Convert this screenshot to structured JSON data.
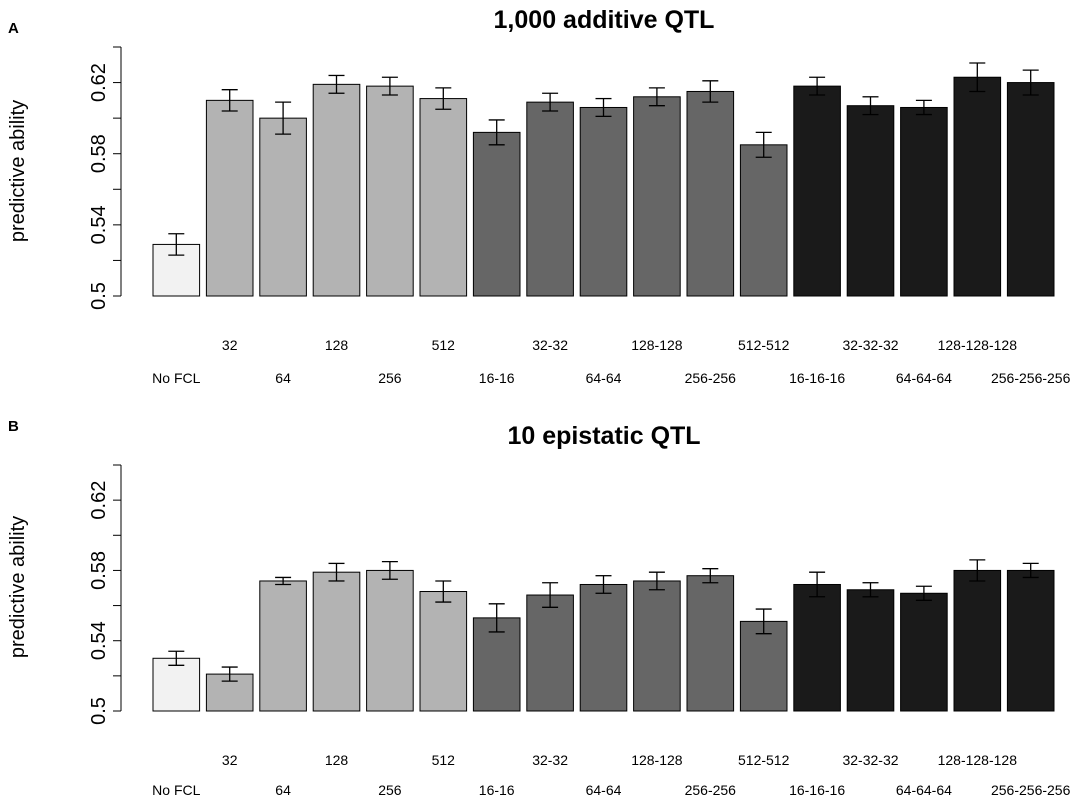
{
  "chart_data": [
    {
      "type": "bar",
      "panel": "A",
      "title": "1,000 additive QTL",
      "xlabel": "",
      "ylabel": "predictive ability",
      "ylim": [
        0.5,
        0.64
      ],
      "yticks": [
        0.5,
        0.54,
        0.58,
        0.62
      ],
      "ytick_labels": [
        "0.5",
        "0.54",
        "0.58",
        "0.62"
      ],
      "categories": [
        "No FCL",
        "32",
        "64",
        "128",
        "256",
        "512",
        "16-16",
        "32-32",
        "64-64",
        "128-128",
        "256-256",
        "512-512",
        "16-16-16",
        "32-32-32",
        "64-64-64",
        "128-128-128",
        "256-256-256"
      ],
      "values": [
        0.529,
        0.61,
        0.6,
        0.619,
        0.618,
        0.611,
        0.592,
        0.609,
        0.606,
        0.612,
        0.615,
        0.585,
        0.618,
        0.607,
        0.606,
        0.623,
        0.62
      ],
      "errors": [
        0.006,
        0.006,
        0.009,
        0.005,
        0.005,
        0.006,
        0.007,
        0.005,
        0.005,
        0.005,
        0.006,
        0.007,
        0.005,
        0.005,
        0.004,
        0.008,
        0.007
      ],
      "colors": [
        "#f2f2f2",
        "#b3b3b3",
        "#b3b3b3",
        "#b3b3b3",
        "#b3b3b3",
        "#b3b3b3",
        "#666666",
        "#666666",
        "#666666",
        "#666666",
        "#666666",
        "#666666",
        "#1a1a1a",
        "#1a1a1a",
        "#1a1a1a",
        "#1a1a1a",
        "#1a1a1a"
      ]
    },
    {
      "type": "bar",
      "panel": "B",
      "title": "10 epistatic QTL",
      "xlabel": "",
      "ylabel": "predictive ability",
      "ylim": [
        0.5,
        0.64
      ],
      "yticks": [
        0.5,
        0.54,
        0.58,
        0.62
      ],
      "ytick_labels": [
        "0.5",
        "0.54",
        "0.58",
        "0.62"
      ],
      "categories": [
        "No FCL",
        "32",
        "64",
        "128",
        "256",
        "512",
        "16-16",
        "32-32",
        "64-64",
        "128-128",
        "256-256",
        "512-512",
        "16-16-16",
        "32-32-32",
        "64-64-64",
        "128-128-128",
        "256-256-256"
      ],
      "values": [
        0.53,
        0.521,
        0.574,
        0.579,
        0.58,
        0.568,
        0.553,
        0.566,
        0.572,
        0.574,
        0.577,
        0.551,
        0.572,
        0.569,
        0.567,
        0.58,
        0.58
      ],
      "errors": [
        0.004,
        0.004,
        0.002,
        0.005,
        0.005,
        0.006,
        0.008,
        0.007,
        0.005,
        0.005,
        0.004,
        0.007,
        0.007,
        0.004,
        0.004,
        0.006,
        0.004
      ],
      "colors": [
        "#f2f2f2",
        "#b3b3b3",
        "#b3b3b3",
        "#b3b3b3",
        "#b3b3b3",
        "#b3b3b3",
        "#666666",
        "#666666",
        "#666666",
        "#666666",
        "#666666",
        "#666666",
        "#1a1a1a",
        "#1a1a1a",
        "#1a1a1a",
        "#1a1a1a",
        "#1a1a1a"
      ]
    }
  ]
}
